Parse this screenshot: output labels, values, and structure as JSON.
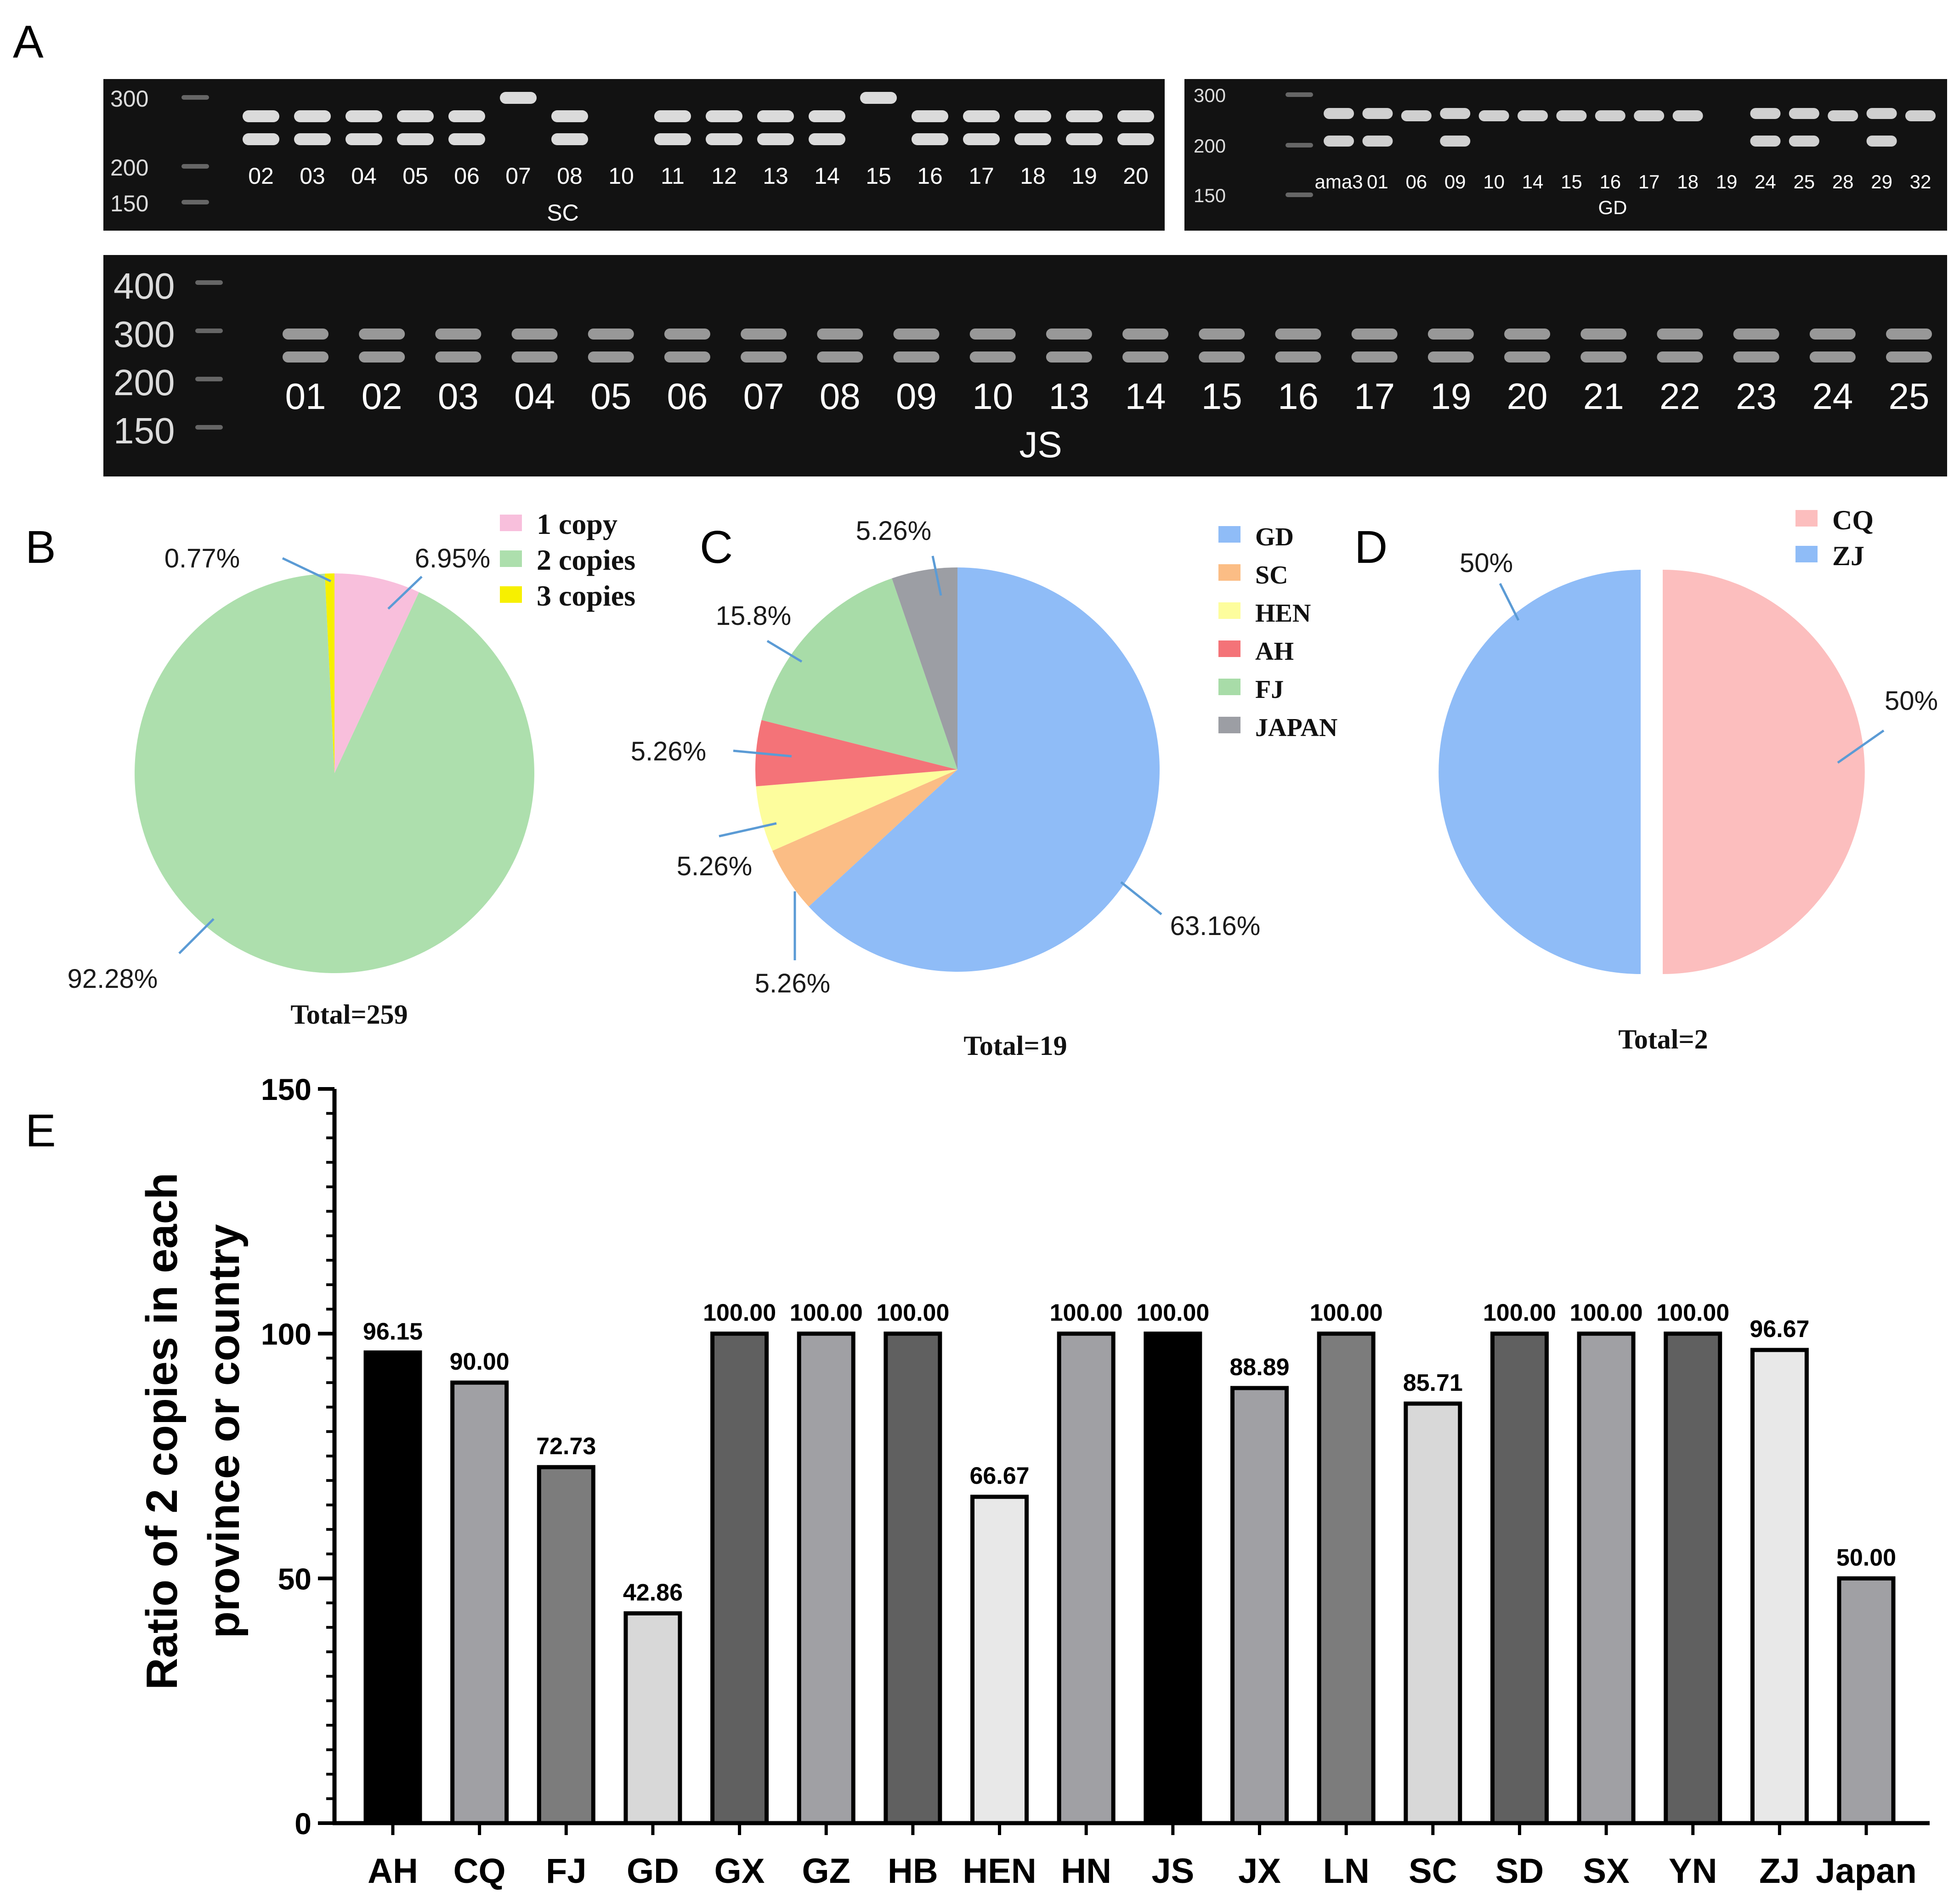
{
  "panel_labels": {
    "a": "A",
    "b": "B",
    "c": "C",
    "d": "D",
    "e": "E"
  },
  "gel_colors": {
    "background": "#121212",
    "ladder_label": "#dcdcdc",
    "lane_label": "#ffffff",
    "band": "#f2f2f2"
  },
  "gels": {
    "sc": {
      "ladder": [
        "300",
        "200",
        "150"
      ],
      "group_label": "SC",
      "lanes": [
        {
          "label": "02",
          "bands": 2
        },
        {
          "label": "03",
          "bands": 2
        },
        {
          "label": "04",
          "bands": 2
        },
        {
          "label": "05",
          "bands": 2
        },
        {
          "label": "06",
          "bands": 2
        },
        {
          "label": "07",
          "bands": 1
        },
        {
          "label": "08",
          "bands": 2
        },
        {
          "label": "10",
          "bands": 0
        },
        {
          "label": "11",
          "bands": 2
        },
        {
          "label": "12",
          "bands": 2
        },
        {
          "label": "13",
          "bands": 2
        },
        {
          "label": "14",
          "bands": 2
        },
        {
          "label": "15",
          "bands": 1
        },
        {
          "label": "16",
          "bands": 2
        },
        {
          "label": "17",
          "bands": 2
        },
        {
          "label": "18",
          "bands": 2
        },
        {
          "label": "19",
          "bands": 2
        },
        {
          "label": "20",
          "bands": 2
        }
      ]
    },
    "gd": {
      "ladder": [
        "300",
        "200",
        "150"
      ],
      "group_label": "GD",
      "lanes": [
        {
          "label": "ama3",
          "bands": 2
        },
        {
          "label": "01",
          "bands": 2
        },
        {
          "label": "06",
          "bands": 1
        },
        {
          "label": "09",
          "bands": 2
        },
        {
          "label": "10",
          "bands": 1
        },
        {
          "label": "14",
          "bands": 1
        },
        {
          "label": "15",
          "bands": 1
        },
        {
          "label": "16",
          "bands": 1
        },
        {
          "label": "17",
          "bands": 1
        },
        {
          "label": "18",
          "bands": 1
        },
        {
          "label": "19",
          "bands": 0
        },
        {
          "label": "24",
          "bands": 2
        },
        {
          "label": "25",
          "bands": 2
        },
        {
          "label": "28",
          "bands": 1
        },
        {
          "label": "29",
          "bands": 2
        },
        {
          "label": "32",
          "bands": 1
        }
      ]
    },
    "js": {
      "ladder": [
        "400",
        "300",
        "200",
        "150"
      ],
      "group_label": "JS",
      "lanes": [
        {
          "label": "01",
          "bands": 2
        },
        {
          "label": "02",
          "bands": 2
        },
        {
          "label": "03",
          "bands": 2
        },
        {
          "label": "04",
          "bands": 2
        },
        {
          "label": "05",
          "bands": 2
        },
        {
          "label": "06",
          "bands": 2
        },
        {
          "label": "07",
          "bands": 2
        },
        {
          "label": "08",
          "bands": 2
        },
        {
          "label": "09",
          "bands": 2
        },
        {
          "label": "10",
          "bands": 2
        },
        {
          "label": "13",
          "bands": 2
        },
        {
          "label": "14",
          "bands": 2
        },
        {
          "label": "15",
          "bands": 2
        },
        {
          "label": "16",
          "bands": 2
        },
        {
          "label": "17",
          "bands": 2
        },
        {
          "label": "19",
          "bands": 2
        },
        {
          "label": "20",
          "bands": 2
        },
        {
          "label": "21",
          "bands": 2
        },
        {
          "label": "22",
          "bands": 2
        },
        {
          "label": "23",
          "bands": 2
        },
        {
          "label": "24",
          "bands": 2
        },
        {
          "label": "25",
          "bands": 2
        }
      ]
    }
  },
  "chart_data": [
    {
      "id": "B",
      "type": "pie",
      "categories": [
        "1 copy",
        "2 copies",
        "3 copies"
      ],
      "values": [
        6.95,
        92.28,
        0.77
      ],
      "labels": [
        "6.95%",
        "92.28%",
        "0.77%"
      ],
      "colors": [
        "#f8bfdc",
        "#addfad",
        "#f7f000"
      ],
      "legend_position": "top-right",
      "footer": "Total=259"
    },
    {
      "id": "C",
      "type": "pie",
      "categories": [
        "GD",
        "SC",
        "HEN",
        "AH",
        "FJ",
        "JAPAN"
      ],
      "values": [
        63.16,
        5.26,
        5.26,
        5.26,
        15.8,
        5.26
      ],
      "labels": [
        "63.16%",
        "5.26%",
        "5.26%",
        "5.26%",
        "15.8%",
        "5.26%"
      ],
      "colors": [
        "#8fbcf7",
        "#fbbd85",
        "#fdfd9d",
        "#f47378",
        "#a8dca8",
        "#9c9ea4"
      ],
      "legend_position": "top-right",
      "footer": "Total=19"
    },
    {
      "id": "D",
      "type": "pie",
      "categories": [
        "CQ",
        "ZJ"
      ],
      "values": [
        50,
        50
      ],
      "labels": [
        "50%",
        "50%"
      ],
      "colors": [
        "#fcbebe",
        "#8fbcf7"
      ],
      "legend_position": "top-right",
      "footer": "Total=2"
    },
    {
      "id": "E",
      "type": "bar",
      "categories": [
        "AH",
        "CQ",
        "FJ",
        "GD",
        "GX",
        "GZ",
        "HB",
        "HEN",
        "HN",
        "JS",
        "JX",
        "LN",
        "SC",
        "SD",
        "SX",
        "YN",
        "ZJ",
        "Japan"
      ],
      "values": [
        96.15,
        90.0,
        72.73,
        42.86,
        100.0,
        100.0,
        100.0,
        66.67,
        100.0,
        100.0,
        88.89,
        100.0,
        85.71,
        100.0,
        100.0,
        100.0,
        96.67,
        50.0
      ],
      "value_labels": [
        "96.15",
        "90.00",
        "72.73",
        "42.86",
        "100.00",
        "100.00",
        "100.00",
        "66.67",
        "100.00",
        "100.00",
        "88.89",
        "100.00",
        "85.71",
        "100.00",
        "100.00",
        "100.00",
        "96.67",
        "50.00"
      ],
      "colors": [
        "#000000",
        "#a0a0a4",
        "#7c7c7c",
        "#d8d8d8",
        "#606060",
        "#a0a0a4",
        "#606060",
        "#e8e8e8",
        "#a0a0a4",
        "#000000",
        "#a0a0a4",
        "#7c7c7c",
        "#d8d8d8",
        "#606060",
        "#a0a0a4",
        "#606060",
        "#e8e8e8",
        "#a0a0a4"
      ],
      "ylabel_lines": [
        "Ratio of 2 copies in each",
        "province or country"
      ],
      "xlabel": "",
      "ylim": [
        0,
        150
      ],
      "yticks": [
        0,
        50,
        100,
        150
      ],
      "ytick_labels": [
        "0",
        "50",
        "100",
        "150"
      ],
      "grid": false
    }
  ]
}
